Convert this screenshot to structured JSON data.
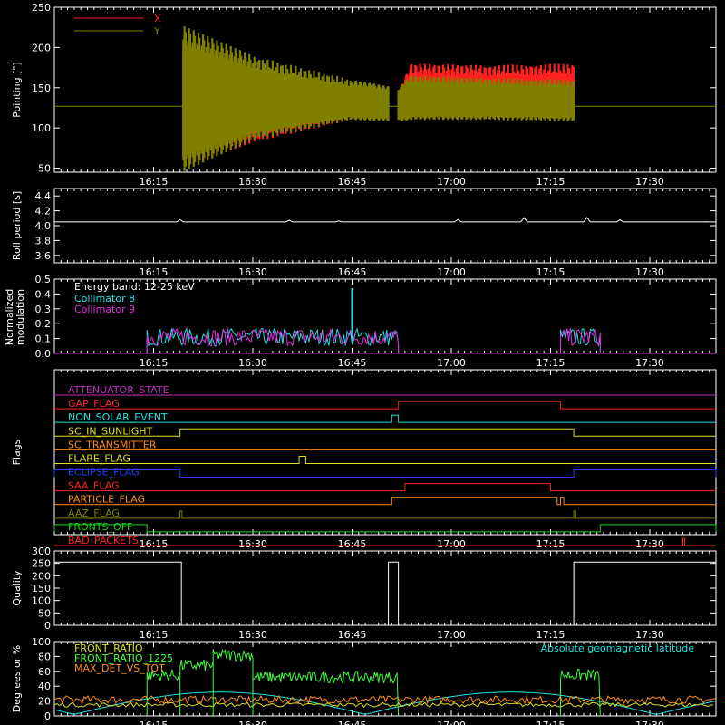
{
  "colors": {
    "bg": "#000000",
    "axis": "#ffffff",
    "red": "#ff2020",
    "olive": "#808000",
    "cyan": "#20e0e0",
    "magenta": "#e030e0",
    "orange": "#ff8c1a",
    "green": "#20d020",
    "yellow": "#e0e020",
    "blue": "#2040ff",
    "purple": "#c030c0",
    "lime": "#40ff40"
  },
  "time_axis": {
    "range_minutes": [
      0,
      100
    ],
    "ticks": [
      {
        "label": "16:15",
        "value": 15
      },
      {
        "label": "16:30",
        "value": 30
      },
      {
        "label": "16:45",
        "value": 45
      },
      {
        "label": "17:00",
        "value": 60
      },
      {
        "label": "17:15",
        "value": 75
      },
      {
        "label": "17:30",
        "value": 90
      }
    ]
  },
  "chart_data": [
    {
      "type": "area",
      "id": "pointing",
      "ylabel": "Pointing [\"]",
      "ylim": [
        45,
        250
      ],
      "yticks": [
        "50",
        "100",
        "150",
        "200",
        "250"
      ],
      "ytick_values": [
        50,
        100,
        150,
        200,
        250
      ],
      "baseline": 127,
      "legend": [
        "X",
        "Y"
      ],
      "series": [
        {
          "name": "X",
          "color_key": "red",
          "segments": [
            [
              19.5,
              50,
              210
            ],
            [
              30,
              82,
              170
            ],
            [
              45,
              110,
              152
            ],
            [
              52,
              112,
              145
            ],
            [
              54,
              140,
              180
            ],
            [
              65,
              140,
              178
            ],
            [
              78.5,
              135,
              180
            ]
          ]
        },
        {
          "name": "Y",
          "color_key": "olive",
          "segments": [
            [
              19.5,
              228,
              45
            ],
            [
              30,
              190,
              85
            ],
            [
              45,
              160,
              110
            ],
            [
              52,
              150,
              108
            ],
            [
              54,
              165,
              110
            ],
            [
              65,
              162,
              110
            ],
            [
              78.5,
              160,
              108
            ]
          ]
        }
      ],
      "gaps": [
        [
          50.5,
          52
        ]
      ]
    },
    {
      "type": "line",
      "id": "roll",
      "ylabel": "Roll period [s]",
      "ylim": [
        3.5,
        4.5
      ],
      "yticks": [
        "3.6",
        "3.8",
        "4.0",
        "4.2",
        "4.4"
      ],
      "ytick_values": [
        3.6,
        3.8,
        4.0,
        4.2,
        4.4
      ],
      "series": [
        {
          "name": "",
          "color_key": "axis",
          "value": 4.05
        }
      ]
    },
    {
      "type": "bar",
      "id": "modulation",
      "ylabel": "Normalized modulation",
      "ylim": [
        0,
        0.5
      ],
      "yticks": [
        "0.0",
        "0.1",
        "0.2",
        "0.3",
        "0.4",
        "0.5"
      ],
      "ytick_values": [
        0,
        0.1,
        0.2,
        0.3,
        0.4,
        0.5
      ],
      "legend_title": "Energy band: 12-25 keV",
      "series": [
        {
          "name": "Collimator 8",
          "color_key": "cyan",
          "windows": [
            [
              14,
              52
            ],
            [
              76.5,
              82.5
            ]
          ],
          "peak": [
            45,
            0.44
          ]
        },
        {
          "name": "Collimator 9",
          "color_key": "magenta",
          "windows": [
            [
              14,
              52
            ],
            [
              76.5,
              82.5
            ]
          ]
        }
      ]
    },
    {
      "type": "line",
      "id": "flags",
      "ylabel": "Flags",
      "flags": [
        {
          "name": "ATTENUATOR_STATE",
          "color_key": "purple",
          "steps": []
        },
        {
          "name": "GAP_FLAG",
          "color_key": "red",
          "steps": [
            [
              52,
              76.5
            ]
          ]
        },
        {
          "name": "NON_SOLAR_EVENT",
          "color_key": "cyan",
          "steps": [
            [
              51,
              52
            ]
          ]
        },
        {
          "name": "SC_IN_SUNLIGHT",
          "color_key": "yellow",
          "steps": [
            [
              19,
              78.5
            ]
          ]
        },
        {
          "name": "SC_TRANSMITTER",
          "color_key": "orange",
          "steps": []
        },
        {
          "name": "FLARE_FLAG",
          "color_key": "yellow",
          "steps": [
            [
              37,
              38
            ]
          ]
        },
        {
          "name": "ECLIPSE_FLAG",
          "color_key": "blue",
          "steps": [
            [
              0,
              19
            ],
            [
              78.5,
              100
            ]
          ]
        },
        {
          "name": "SAA_FLAG",
          "color_key": "red",
          "steps": [
            [
              53,
              75
            ]
          ]
        },
        {
          "name": "PARTICLE_FLAG",
          "color_key": "orange",
          "steps": [
            [
              51,
              76
            ],
            [
              76.5,
              77
            ]
          ]
        },
        {
          "name": "AAZ_FLAG",
          "color_key": "olive",
          "steps": [
            [
              19,
              19.3
            ],
            [
              78.5,
              78.8
            ]
          ]
        },
        {
          "name": "FRONTS_OFF",
          "color_key": "green",
          "steps": [
            [
              0,
              14
            ],
            [
              82.5,
              100
            ]
          ]
        },
        {
          "name": "BAD_PACKETS",
          "color_key": "red",
          "steps": [
            [
              95,
              95.3
            ]
          ]
        }
      ]
    },
    {
      "type": "line",
      "id": "quality",
      "ylabel": "Quality",
      "ylim": [
        0,
        300
      ],
      "yticks": [
        "0",
        "50",
        "100",
        "150",
        "200",
        "250",
        "300"
      ],
      "ytick_values": [
        0,
        50,
        100,
        150,
        200,
        250,
        300
      ],
      "series": [
        {
          "name": "",
          "color_key": "axis",
          "points": [
            [
              0,
              255
            ],
            [
              19.2,
              255
            ],
            [
              19.2,
              0
            ],
            [
              50.5,
              0
            ],
            [
              50.5,
              255
            ],
            [
              52,
              255
            ],
            [
              52,
              0
            ],
            [
              78.5,
              0
            ],
            [
              78.5,
              255
            ],
            [
              100,
              255
            ]
          ]
        }
      ]
    },
    {
      "type": "line",
      "id": "latitude",
      "ylabel": "Degrees or %",
      "ylim": [
        0,
        100
      ],
      "yticks": [
        "0",
        "20",
        "40",
        "60",
        "80",
        "100"
      ],
      "ytick_values": [
        0,
        20,
        40,
        60,
        80,
        100
      ],
      "legend": [
        "FRONT_RATIO",
        "FRONT_RATIO_1225",
        "MAX_DET_VS_TOT"
      ],
      "annotation": "Absolute geomagnetic latitude",
      "series": [
        {
          "name": "FRONT_RATIO",
          "color_key": "yellow",
          "level": 15
        },
        {
          "name": "FRONT_RATIO_1225",
          "color_key": "lime",
          "windows": [
            [
              14,
              52
            ],
            [
              76.5,
              82.5
            ]
          ],
          "levels": [
            [
              14,
              19,
              55
            ],
            [
              19,
              24,
              68
            ],
            [
              24,
              30,
              82
            ],
            [
              30,
              52,
              52
            ],
            [
              76.5,
              82.5,
              55
            ]
          ]
        },
        {
          "name": "MAX_DET_VS_TOT",
          "color_key": "orange",
          "level": 22
        },
        {
          "name": "Absolute geomagnetic latitude",
          "color_key": "cyan",
          "period": 44,
          "amplitude": 30,
          "min": 2
        }
      ]
    }
  ]
}
